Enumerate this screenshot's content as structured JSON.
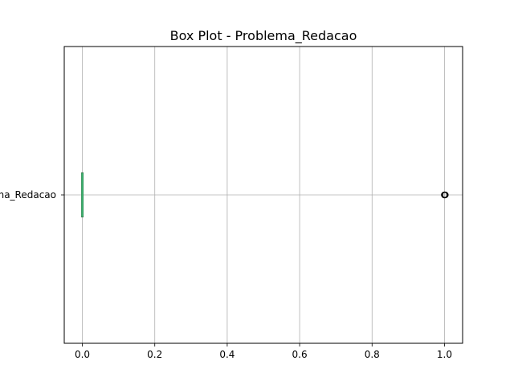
{
  "chart_data": {
    "type": "box",
    "orientation": "horizontal",
    "title": "Box Plot - Problema_Redacao",
    "xlabel": "",
    "ylabel": "",
    "xlim": [
      -0.05,
      1.05
    ],
    "xticks": [
      0.0,
      0.2,
      0.4,
      0.6,
      0.8,
      1.0
    ],
    "xtick_labels": [
      "0.0",
      "0.2",
      "0.4",
      "0.6",
      "0.8",
      "1.0"
    ],
    "grid": true,
    "categories": [
      "Problema_Redacao"
    ],
    "series": [
      {
        "category": "Problema_Redacao",
        "min": 0.0,
        "q1": 0.0,
        "median": 0.0,
        "q3": 0.0,
        "max": 0.0,
        "outliers": [
          1.0
        ]
      }
    ],
    "colors": {
      "box": "#3a7d4f",
      "median": "#3cb371",
      "grid": "#b0b0b0",
      "outlier": "#000000",
      "spine": "#000000"
    }
  }
}
